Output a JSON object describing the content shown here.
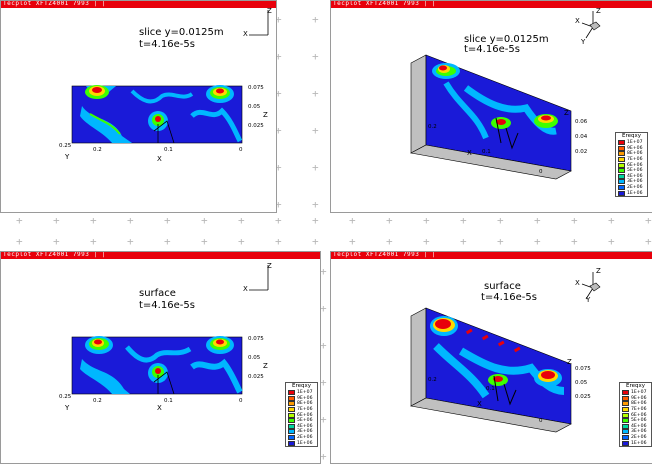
{
  "panels": [
    {
      "id": "tl",
      "toolbar": "Tecplot  XFTZ4001 7993  |  |",
      "title_line1": "slice y=0.0125m",
      "title_line2": "t=4.16e-5s",
      "x_ticks": [
        "0.2",
        "0.1",
        "0"
      ],
      "x_left_tick": "0.25",
      "y_ticks": [
        "0.075",
        "0.05",
        "0.025"
      ],
      "axis_x": "X",
      "axis_z": "Z",
      "axis_y": "Y"
    },
    {
      "id": "tr",
      "toolbar": "Tecplot  XFTZ4001 7993  |  |",
      "title_line1": "slice y=0.0125m",
      "title_line2": "t=4.16e-5s",
      "x_ticks": [
        "0.2",
        "0.1",
        "0"
      ],
      "y_ticks": [
        "0.06",
        "0.04",
        "0.02"
      ],
      "axis_x": "X",
      "axis_z": "Z",
      "axis_y": "Y"
    },
    {
      "id": "bl",
      "toolbar": "Tecplot  XFTZ4001 7993  |  |",
      "title_line1": "surface",
      "title_line2": "t=4.16e-5s",
      "x_ticks": [
        "0.2",
        "0.1",
        "0"
      ],
      "x_left_tick": "0.25",
      "y_ticks": [
        "0.075",
        "0.05",
        "0.025"
      ],
      "axis_x": "X",
      "axis_z": "Z",
      "axis_y": "Y"
    },
    {
      "id": "br",
      "toolbar": "Tecplot  XFTZ4001 7993  |  |",
      "title_line1": "surface",
      "title_line2": "t=4.16e-5s",
      "x_ticks": [
        "0.2",
        "0.1",
        "0"
      ],
      "y_ticks": [
        "0.075",
        "0.05",
        "0.025"
      ],
      "axis_x": "X",
      "axis_z": "Z",
      "axis_y": "Y"
    }
  ],
  "legend": {
    "title": "Ereqxy",
    "levels": [
      "1E+07",
      "9E+06",
      "8E+06",
      "7E+06",
      "6E+06",
      "5E+06",
      "4E+06",
      "3E+06",
      "2E+06",
      "1E+06"
    ],
    "colors": [
      "#e8000b",
      "#ff5a00",
      "#ff9b00",
      "#ffd700",
      "#b4ff00",
      "#3dff00",
      "#00d9a0",
      "#00b7ff",
      "#0063ff",
      "#1a1ad8"
    ]
  }
}
